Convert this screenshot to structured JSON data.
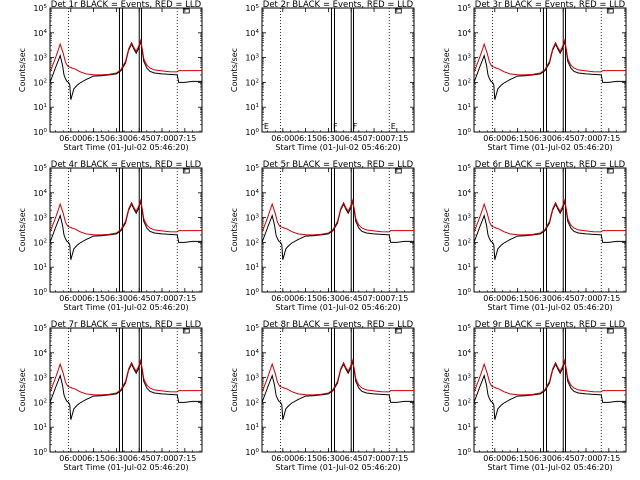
{
  "chart_data": {
    "type": "line",
    "ylabel": "Counts/sec",
    "xlabel": "Start Time (01-Jul-02 05:46:20)",
    "x_tick_labels": [
      "06:00",
      "06:15",
      "06:30",
      "06:45",
      "07:00",
      "07:15"
    ],
    "x_ticks_minutes": [
      360,
      375,
      390,
      405,
      420,
      435
    ],
    "xlim_minutes": [
      346.3,
      446.3
    ],
    "yscale": "log",
    "ylim": [
      1,
      100000
    ],
    "y_tick_labels": [
      "10^0",
      "10^1",
      "10^2",
      "10^3",
      "10^4",
      "10^5"
    ],
    "dotted_vlines_minutes": [
      358.5,
      430.0
    ],
    "solid_vlines_minutes": [
      392.0,
      394.0,
      405.0,
      406.5
    ],
    "series_colors": {
      "black": "#000000",
      "red": "#cc0000"
    },
    "panels": [
      {
        "title": "Det 1r BLACK = Events, RED = LLD",
        "empty": false
      },
      {
        "title": "Det 2r BLACK = Events, RED = LLD",
        "empty": true
      },
      {
        "title": "Det 3r BLACK = Events, RED = LLD",
        "empty": false
      },
      {
        "title": "Det 4r BLACK = Events, RED = LLD",
        "empty": false
      },
      {
        "title": "Det 5r BLACK = Events, RED = LLD",
        "empty": false
      },
      {
        "title": "Det 6r BLACK = Events, RED = LLD",
        "empty": false
      },
      {
        "title": "Det 7r BLACK = Events, RED = LLD",
        "empty": false
      },
      {
        "title": "Det 8r BLACK = Events, RED = LLD",
        "empty": false
      },
      {
        "title": "Det 9r BLACK = Events, RED = LLD",
        "empty": false
      }
    ],
    "red_series": {
      "x": [
        346.3,
        350,
        353,
        355,
        356.5,
        358,
        360,
        363,
        366,
        370,
        375,
        380,
        385,
        390,
        393,
        396,
        398,
        400,
        401.5,
        403,
        404.5,
        406,
        407,
        408,
        410,
        412,
        415,
        420,
        425,
        430,
        431,
        435,
        440,
        446.3
      ],
      "y": [
        250,
        1000,
        3500,
        1500,
        650,
        440,
        400,
        340,
        270,
        220,
        205,
        200,
        210,
        240,
        330,
        700,
        2200,
        4000,
        2500,
        1800,
        2800,
        5000,
        2200,
        900,
        500,
        380,
        320,
        290,
        270,
        265,
        300,
        300,
        300,
        300
      ]
    },
    "black_series": {
      "x": [
        346.3,
        350,
        353,
        354.5,
        355.5,
        356.5,
        357.5,
        358.5,
        359.3,
        360,
        362,
        364,
        366,
        370,
        375,
        380,
        385,
        390,
        393,
        396,
        398,
        400,
        401.5,
        403,
        404.5,
        406,
        407,
        408,
        410,
        412,
        415,
        420,
        425,
        430,
        431,
        435,
        440,
        446.3
      ],
      "y": [
        100,
        400,
        1200,
        500,
        200,
        140,
        110,
        100,
        80,
        20,
        55,
        75,
        95,
        130,
        180,
        185,
        200,
        220,
        300,
        600,
        2000,
        3500,
        2200,
        1500,
        2300,
        4500,
        1800,
        700,
        380,
        280,
        240,
        220,
        210,
        200,
        100,
        100,
        110,
        110
      ]
    },
    "empty_panel_markers": [
      {
        "label": "E",
        "x_minutes": 347.5
      },
      {
        "label": "F",
        "x_minutes": 393.0
      },
      {
        "label": "F",
        "x_minutes": 406.0
      },
      {
        "label": "E",
        "x_minutes": 431.0
      }
    ]
  }
}
